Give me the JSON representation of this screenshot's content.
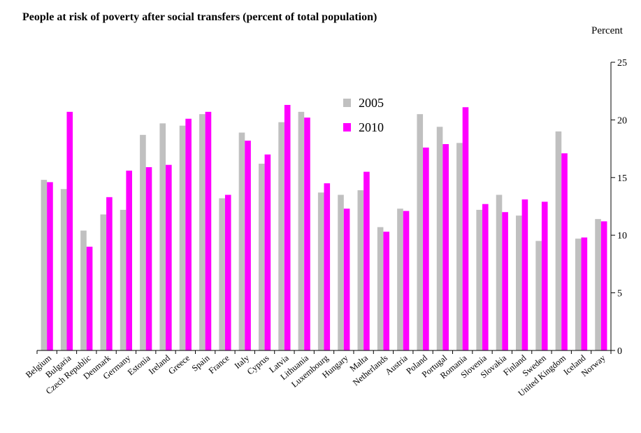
{
  "chart_data": {
    "type": "bar",
    "title": "People at risk of poverty after social transfers (percent of total population)",
    "unit_label": "Percent",
    "xlabel": "",
    "ylabel": "",
    "ylim": [
      0,
      25
    ],
    "yticks": [
      0,
      5,
      10,
      15,
      20,
      25
    ],
    "y_axis_side": "right",
    "grid": false,
    "legend_position": "top-center",
    "categories": [
      "Belgium",
      "Bulgaria",
      "Czech Republic",
      "Denmark",
      "Germany",
      "Estonia",
      "Ireland",
      "Greece",
      "Spain",
      "France",
      "Italy",
      "Cyprus",
      "Latvia",
      "Lithuania",
      "Luxembourg",
      "Hungary",
      "Malta",
      "Netherlands",
      "Austria",
      "Poland",
      "Portugal",
      "Romania",
      "Slovenia",
      "Slovakia",
      "Finland",
      "Sweden",
      "United Kingdom",
      "Iceland",
      "Norway"
    ],
    "series": [
      {
        "name": "2005",
        "color": "#c0c0c0",
        "values": [
          14.8,
          14.0,
          10.4,
          11.8,
          12.2,
          18.7,
          19.7,
          19.5,
          20.5,
          13.2,
          18.9,
          16.2,
          19.8,
          20.7,
          13.7,
          13.5,
          13.9,
          10.7,
          12.3,
          20.5,
          19.4,
          18.0,
          12.2,
          13.5,
          11.7,
          9.5,
          19.0,
          9.7,
          11.4
        ]
      },
      {
        "name": "2010",
        "color": "#ff00ff",
        "values": [
          14.6,
          20.7,
          9.0,
          13.3,
          15.6,
          15.9,
          16.1,
          20.1,
          20.7,
          13.5,
          18.2,
          17.0,
          21.3,
          20.2,
          14.5,
          12.3,
          15.5,
          10.3,
          12.1,
          17.6,
          17.9,
          21.1,
          12.7,
          12.0,
          13.1,
          12.9,
          17.1,
          9.8,
          11.2
        ]
      }
    ]
  }
}
